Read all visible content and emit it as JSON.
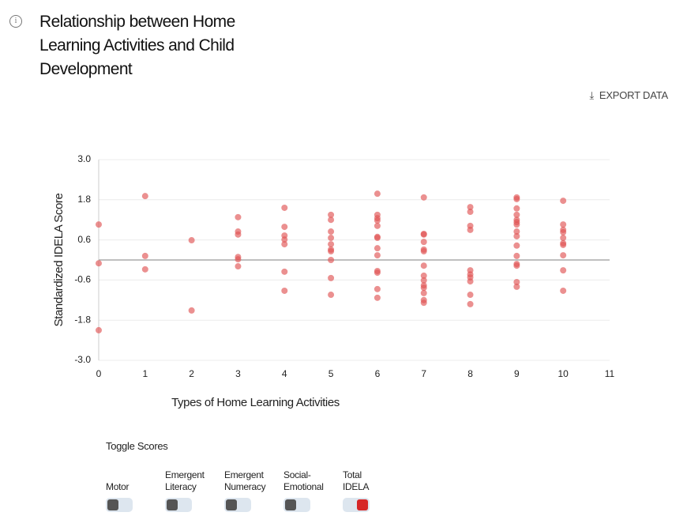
{
  "header": {
    "title": "Relationship between Home Learning Activities and Child Development",
    "export": "EXPORT DATA"
  },
  "chart_data": {
    "type": "scatter",
    "x_label": "Types of Home Learning Activities",
    "y_label": "Standardized IDELA Score",
    "x": [
      0,
      0,
      0,
      1,
      1,
      1,
      2,
      2,
      3,
      3,
      3,
      3,
      3,
      3,
      4,
      4,
      4,
      4,
      4,
      4,
      4,
      5,
      5,
      5,
      5,
      5,
      5,
      5,
      5,
      5,
      5,
      6,
      6,
      6,
      6,
      6,
      6,
      6,
      6,
      6,
      6,
      6,
      6,
      6,
      7,
      7,
      7,
      7,
      7,
      7,
      7,
      7,
      7,
      7,
      7,
      7,
      7,
      7,
      8,
      8,
      8,
      8,
      8,
      8,
      8,
      8,
      8,
      8,
      9,
      9,
      9,
      9,
      9,
      9,
      9,
      9,
      9,
      9,
      9,
      9,
      9,
      9,
      9,
      10,
      10,
      10,
      10,
      10,
      10,
      10,
      10,
      10,
      10
    ],
    "y": [
      1.06,
      -0.1,
      -2.1,
      1.91,
      0.12,
      -0.28,
      0.59,
      -1.51,
      1.28,
      0.85,
      0.76,
      0.09,
      0.02,
      -0.19,
      1.56,
      0.99,
      0.73,
      0.61,
      0.47,
      -0.35,
      -0.92,
      1.35,
      1.2,
      0.85,
      0.66,
      0.47,
      0.31,
      0.26,
      0,
      -0.54,
      -1.04,
      1.98,
      1.35,
      1.25,
      1.18,
      1.02,
      0.69,
      0.66,
      0.35,
      0.14,
      -0.33,
      -0.38,
      -0.87,
      -1.13,
      1.87,
      0.78,
      0.76,
      0.54,
      0.31,
      0.26,
      -0.17,
      -0.47,
      -0.61,
      -0.76,
      -0.83,
      -0.99,
      -1.2,
      -1.28,
      1.58,
      1.44,
      1.02,
      0.9,
      -0.31,
      -0.43,
      -0.52,
      -0.64,
      -1.04,
      -1.32,
      1.87,
      1.82,
      1.54,
      1.35,
      1.2,
      1.13,
      1.06,
      0.85,
      0.71,
      0.43,
      0.12,
      -0.12,
      -0.17,
      -0.66,
      -0.8,
      1.77,
      1.06,
      0.9,
      0.83,
      0.66,
      0.5,
      0.45,
      0.14,
      -0.31,
      -0.92
    ],
    "color": "#e05555",
    "xlim": [
      0,
      11
    ],
    "xticks": [
      0,
      1,
      2,
      3,
      4,
      5,
      6,
      7,
      8,
      9,
      10,
      11
    ],
    "ylim": [
      -3,
      3
    ],
    "yticks": [
      {
        "value": -3,
        "label": "-3.0"
      },
      -1.8,
      -0.6,
      0.6,
      1.8,
      {
        "value": 3,
        "label": "3.0"
      }
    ],
    "grid": true
  },
  "toggles": {
    "title": "Toggle Scores",
    "on_color": "#d62728",
    "off_color": "#555555",
    "items": [
      {
        "label": "Motor",
        "active": false
      },
      {
        "label": "Emergent Literacy",
        "active": false
      },
      {
        "label": "Emergent Numeracy",
        "active": false
      },
      {
        "label": "Social-Emotional",
        "active": false
      },
      {
        "label": "Total IDELA",
        "active": true
      }
    ]
  }
}
